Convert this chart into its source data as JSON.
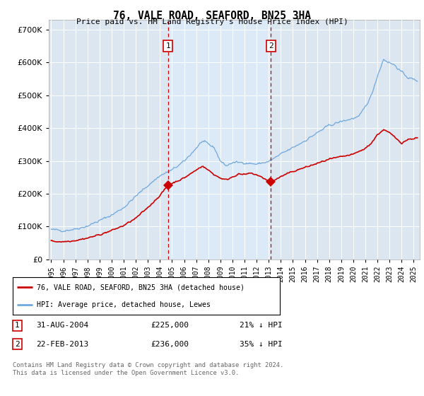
{
  "title": "76, VALE ROAD, SEAFORD, BN25 3HA",
  "subtitle": "Price paid vs. HM Land Registry's House Price Index (HPI)",
  "ylim": [
    0,
    730000
  ],
  "xlim_start": 1994.8,
  "xlim_end": 2025.5,
  "sale1_date": 2004.667,
  "sale1_price": 225000,
  "sale2_date": 2013.167,
  "sale2_price": 236000,
  "hpi_color": "#6fa8dc",
  "price_color": "#cc0000",
  "vline_color": "#cc0000",
  "shade_color": "#dce9f7",
  "legend_label_price": "76, VALE ROAD, SEAFORD, BN25 3HA (detached house)",
  "legend_label_hpi": "HPI: Average price, detached house, Lewes",
  "table_row1": [
    "1",
    "31-AUG-2004",
    "£225,000",
    "21% ↓ HPI"
  ],
  "table_row2": [
    "2",
    "22-FEB-2013",
    "£236,000",
    "35% ↓ HPI"
  ],
  "footnote": "Contains HM Land Registry data © Crown copyright and database right 2024.\nThis data is licensed under the Open Government Licence v3.0.",
  "background_color": "#ffffff",
  "plot_bg_color": "#dce6f1"
}
